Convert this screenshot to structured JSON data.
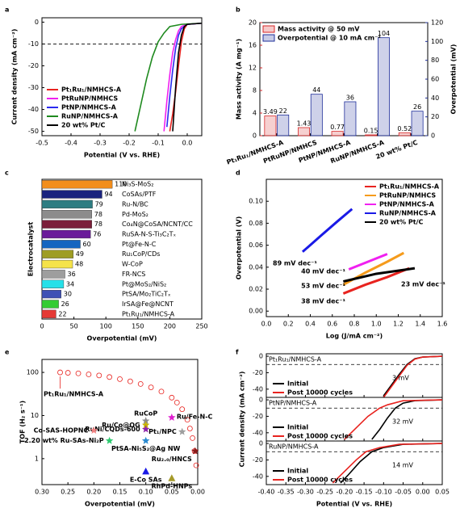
{
  "chart_data": [
    {
      "letter": "a",
      "type": "line",
      "xlabel": "Potential (V vs. RHE)",
      "ylabel": "Current density (mA cm⁻²)",
      "xlim": [
        -0.5,
        0.05
      ],
      "xticks": [
        -0.5,
        -0.4,
        -0.3,
        -0.2,
        -0.1,
        {
          "value": 0,
          "label": "0.0"
        }
      ],
      "ylim": [
        -52,
        2
      ],
      "yticks": [
        -50,
        -40,
        -30,
        -20,
        -10,
        0
      ],
      "hline": -10,
      "legend": "lower left",
      "series": [
        {
          "name": "Pt₁Ru₁/NMHCS-A",
          "color": "#e8231f",
          "x": [
            0.05,
            0,
            -0.01,
            -0.02,
            -0.03,
            -0.04,
            -0.05,
            -0.06
          ],
          "y": [
            -0.5,
            -1,
            -3,
            -9,
            -20,
            -32,
            -42,
            -50
          ]
        },
        {
          "name": "PtRuNP/NMHCS",
          "color": "#f020f0",
          "x": [
            0.05,
            0,
            -0.02,
            -0.03,
            -0.04,
            -0.05,
            -0.06,
            -0.07,
            -0.08
          ],
          "y": [
            -0.5,
            -1,
            -2,
            -4,
            -8,
            -14,
            -24,
            -36,
            -50
          ]
        },
        {
          "name": "PtNP/NMHCS-A",
          "color": "#2a2af0",
          "x": [
            0.05,
            0,
            -0.02,
            -0.03,
            -0.04,
            -0.05,
            -0.06,
            -0.07
          ],
          "y": [
            -0.5,
            -1,
            -3,
            -6,
            -12,
            -22,
            -34,
            -48
          ]
        },
        {
          "name": "RuNP/NMHCS-A",
          "color": "#1f8a1f",
          "x": [
            0.05,
            -0.02,
            -0.06,
            -0.08,
            -0.1,
            -0.12,
            -0.14,
            -0.16,
            -0.18
          ],
          "y": [
            -0.5,
            -1,
            -2,
            -5,
            -9,
            -16,
            -26,
            -38,
            -50
          ]
        },
        {
          "name": "20 wt% Pt/C",
          "color": "#000000",
          "x": [
            0.05,
            0,
            -0.01,
            -0.02,
            -0.03,
            -0.04,
            -0.05
          ],
          "y": [
            -0.5,
            -1,
            -2,
            -6,
            -14,
            -30,
            -50
          ]
        }
      ]
    },
    {
      "letter": "b",
      "type": "bar",
      "categories": [
        "Pt₁Ru₁/NMHCS-A",
        "PtRuNP/NMHCS",
        "PtNP/NMHCS-A",
        "RuNP/NMHCS-A",
        "20 wt% Pt/C"
      ],
      "ylabel": "Mass activity (A mg⁻¹)",
      "y2label": "Overpotential (mV)",
      "ylim": [
        0,
        20
      ],
      "yticks": [
        0,
        4,
        8,
        12,
        16,
        20
      ],
      "y2lim": [
        0,
        120
      ],
      "y2ticks": [
        0,
        20,
        40,
        60,
        80,
        100,
        120
      ],
      "legend": "upper left",
      "series": [
        {
          "name": "Mass activity @ 50 mV",
          "color": "#d62728",
          "values": [
            3.49,
            1.43,
            0.77,
            0.15,
            0.52
          ]
        },
        {
          "name": "Overpotential @ 10 mA cm⁻²",
          "color": "#1f2f9a",
          "axis": "y2",
          "values": [
            22,
            44,
            36,
            104,
            26
          ]
        }
      ]
    },
    {
      "letter": "c",
      "type": "hbar",
      "xlabel": "Overpotential (mV)",
      "ylabel": "Electrocatalyst",
      "xlim": [
        0,
        250
      ],
      "xticks": [
        0,
        50,
        100,
        150,
        200,
        250
      ],
      "categories": [
        "Ni₃S-MoS₂",
        "CoSAs/PTF",
        "Ru-N/BC",
        "Pd-MoS₂",
        "Co₄N@CoSA/NCNT/CC",
        "RuSA-N-S-Ti₃C₂Tₓ",
        "Pt@Fe-N-C",
        "Ru₁CoP/CDs",
        "W-CoP",
        "FR-NCS",
        "Pt@MoS₂/NiS₂",
        "PtSA/Mo₂TiC₂Tₓ",
        "IrSA@Fe@NCNT",
        "Pt₁Ru₁/NMHCS-A"
      ],
      "values": [
        110,
        94,
        79,
        78,
        78,
        76,
        60,
        49,
        48,
        36,
        34,
        30,
        26,
        22
      ],
      "colors": [
        "#f28e1c",
        "#1a237e",
        "#2e7d82",
        "#8c8c8c",
        "#7b1f3a",
        "#6a1b9a",
        "#1565c0",
        "#9e9d24",
        "#f5e34a",
        "#9e9e9e",
        "#26e0e8",
        "#3f51b5",
        "#33cc33",
        "#e53935"
      ]
    },
    {
      "letter": "d",
      "type": "line",
      "xlabel": "Log (J/mA cm⁻²)",
      "ylabel": "Overpotential (V)",
      "xlim": [
        0,
        1.6
      ],
      "xticks": [
        {
          "value": 0,
          "label": "0.0"
        },
        0.2,
        0.4,
        0.6,
        0.8,
        {
          "value": 1,
          "label": "1.0"
        },
        1.2,
        1.4,
        1.6
      ],
      "ylim": [
        -0.005,
        0.12
      ],
      "yticks": [
        {
          "value": 0,
          "label": "0.00"
        },
        0.02,
        0.04,
        0.06,
        0.08,
        {
          "value": 0.1,
          "label": "0.10"
        }
      ],
      "legend": "upper right",
      "series": [
        {
          "name": "Pt₁Ru₁/NMHCS-A",
          "color": "#e8231f",
          "x": [
            0.7,
            0.9,
            1.1,
            1.3
          ],
          "y": [
            0.016,
            0.024,
            0.031,
            0.039
          ]
        },
        {
          "name": "PtRuNP/NMHCS",
          "color": "#f59b1c",
          "x": [
            0.7,
            0.9,
            1.1,
            1.25
          ],
          "y": [
            0.024,
            0.035,
            0.045,
            0.053
          ]
        },
        {
          "name": "PtNP/NMHCS-A",
          "color": "#f020f0",
          "x": [
            0.75,
            0.9,
            1.1
          ],
          "y": [
            0.038,
            0.044,
            0.052
          ]
        },
        {
          "name": "RuNP/NMHCS-A",
          "color": "#1a1ae6",
          "x": [
            0.33,
            0.5,
            0.65,
            0.78
          ],
          "y": [
            0.054,
            0.069,
            0.082,
            0.093
          ]
        },
        {
          "name": "20 wt% Pt/C",
          "color": "#000000",
          "x": [
            0.7,
            1,
            1.35
          ],
          "y": [
            0.027,
            0.034,
            0.039
          ]
        }
      ],
      "annotations": [
        {
          "text": "89 mV dec⁻¹",
          "color": "#1a1ae6"
        },
        {
          "text": "40 mV dec⁻¹",
          "color": "#f020f0"
        },
        {
          "text": "53 mV dec⁻¹",
          "color": "#f59b1c"
        },
        {
          "text": "38 mV dec⁻¹",
          "color": "#e8231f"
        },
        {
          "text": "23 mV dec⁻¹",
          "color": "#000000"
        }
      ]
    },
    {
      "letter": "e",
      "type": "scatter",
      "xlabel": "Overpotential (mV)",
      "ylabel": "TOF (H₂ s⁻¹)",
      "xlim": [
        0.3,
        0
      ],
      "xticks": [
        {
          "value": 0.3,
          "label": "0.30"
        },
        0.25,
        {
          "value": 0.2,
          "label": "0.20"
        },
        0.15,
        {
          "value": 0.1,
          "label": "0.10"
        },
        0.05,
        {
          "value": 0,
          "label": "0.00"
        }
      ],
      "ylim": [
        0.25,
        200
      ],
      "ylog": true,
      "yticks": [
        1,
        10,
        100
      ],
      "series": [
        {
          "name": "Pt₁Ru₁/NMHCS-A",
          "color": "#e8231f",
          "marker": "circle",
          "x": [
            0.265,
            0.25,
            0.23,
            0.21,
            0.19,
            0.17,
            0.15,
            0.13,
            0.11,
            0.09,
            0.07,
            0.05,
            0.04,
            0.03,
            0.02,
            0.015,
            0.01,
            0.006,
            0.003
          ],
          "y": [
            100,
            98,
            95,
            90,
            85,
            78,
            70,
            62,
            54,
            45,
            36,
            26,
            20,
            14,
            8,
            5,
            3,
            1.5,
            0.7
          ]
        },
        {
          "name": "Ru/Fe-N-C",
          "color": "#e020d0",
          "marker": "star",
          "x": [
            0.05
          ],
          "y": [
            9
          ]
        },
        {
          "name": "RuCoP",
          "color": "#8c8c8c",
          "marker": "star",
          "x": [
            0.1
          ],
          "y": [
            7.5
          ]
        },
        {
          "name": "Ru/Co@OG",
          "color": "#c8b400",
          "marker": "star",
          "x": [
            0.1
          ],
          "y": [
            6
          ]
        },
        {
          "name": "RuNi/CQDs-600",
          "color": "#8e24aa",
          "marker": "star",
          "x": [
            0.1
          ],
          "y": [
            4.8
          ]
        },
        {
          "name": "Co-SAS-HOPNC",
          "color": "#f08080",
          "marker": "star",
          "x": [
            0.2
          ],
          "y": [
            4.5
          ]
        },
        {
          "name": "Pt₁/NPC",
          "color": "#9e9e9e",
          "marker": "star",
          "x": [
            0.03
          ],
          "y": [
            4.2
          ]
        },
        {
          "name": "2.20 wt% Ru-SAs-Ni₂P",
          "color": "#2ecc71",
          "marker": "star",
          "x": [
            0.17
          ],
          "y": [
            2.6
          ]
        },
        {
          "name": "PtSA-Ni₅S₂@Ag NW",
          "color": "#2a8ad0",
          "marker": "star",
          "x": [
            0.1
          ],
          "y": [
            2.6
          ]
        },
        {
          "name": "Ru₂.₀/HNCS",
          "color": "#8b1a1a",
          "marker": "star",
          "x": [
            0.005
          ],
          "y": [
            1.5
          ]
        },
        {
          "name": "E-Co SAs",
          "color": "#1a1ae6",
          "marker": "triangle",
          "x": [
            0.1
          ],
          "y": [
            0.5
          ]
        },
        {
          "name": "RhPd-HNPs",
          "color": "#a59a2a",
          "marker": "triangle",
          "x": [
            0.05
          ],
          "y": [
            0.35
          ]
        }
      ]
    },
    {
      "letter": "f",
      "type": "line",
      "xlabel": "Potential (V vs. RHE)",
      "ylabel": "Current density (mA cm⁻²)",
      "xlim": [
        -0.4,
        0.05
      ],
      "xticks": [
        {
          "value": -0.4,
          "label": "-0.40"
        },
        -0.35,
        {
          "value": -0.3,
          "label": "-0.30"
        },
        -0.25,
        {
          "value": -0.2,
          "label": "-0.20"
        },
        -0.15,
        {
          "value": -0.1,
          "label": "-0.10"
        },
        -0.05,
        {
          "value": 0,
          "label": "0.00"
        },
        0.05
      ],
      "panels": [
        {
          "title": "Pt₁Ru₁/NMHCS-A",
          "annotation": "3 mV",
          "ylim": [
            -50,
            3
          ],
          "yticks": [
            -40,
            -20,
            0
          ],
          "hline": -10,
          "series": [
            {
              "name": "Initial",
              "color": "#000000",
              "x": [
                0.05,
                0,
                -0.02,
                -0.04,
                -0.06,
                -0.08,
                -0.1
              ],
              "y": [
                0,
                -1,
                -3,
                -10,
                -22,
                -35,
                -48
              ]
            },
            {
              "name": "Post 10000 cycles",
              "color": "#e8231f",
              "x": [
                0.05,
                0,
                -0.02,
                -0.04,
                -0.06,
                -0.08,
                -0.1
              ],
              "y": [
                0,
                -1,
                -3.5,
                -11,
                -24,
                -37,
                -50
              ]
            }
          ]
        },
        {
          "title": "PtNP/NMHCS-A",
          "annotation": "32 mV",
          "ylim": [
            -50,
            3
          ],
          "yticks": [
            -40,
            -20,
            0
          ],
          "hline": -10,
          "series": [
            {
              "name": "Initial",
              "color": "#000000",
              "x": [
                0.05,
                -0.02,
                -0.05,
                -0.07,
                -0.09,
                -0.11,
                -0.13
              ],
              "y": [
                0,
                -1,
                -4,
                -10,
                -22,
                -36,
                -48
              ]
            },
            {
              "name": "Post 10000 cycles",
              "color": "#e8231f",
              "x": [
                0.05,
                -0.05,
                -0.09,
                -0.11,
                -0.14,
                -0.17,
                -0.2
              ],
              "y": [
                0,
                -1,
                -6,
                -10,
                -20,
                -34,
                -48
              ]
            }
          ]
        },
        {
          "title": "RuNP/NMHCS-A",
          "annotation": "14 mV",
          "ylim": [
            -50,
            3
          ],
          "yticks": [
            -40,
            -20,
            0
          ],
          "hline": -10,
          "series": [
            {
              "name": "Initial",
              "color": "#000000",
              "x": [
                0.05,
                -0.05,
                -0.1,
                -0.13,
                -0.16,
                -0.19,
                -0.21
              ],
              "y": [
                0,
                -1,
                -5,
                -10,
                -22,
                -38,
                -48
              ]
            },
            {
              "name": "Post 10000 cycles",
              "color": "#e8231f",
              "x": [
                0.05,
                -0.06,
                -0.11,
                -0.145,
                -0.17,
                -0.2,
                -0.23
              ],
              "y": [
                0,
                -1,
                -5,
                -10,
                -20,
                -34,
                -48
              ]
            }
          ]
        }
      ]
    }
  ]
}
